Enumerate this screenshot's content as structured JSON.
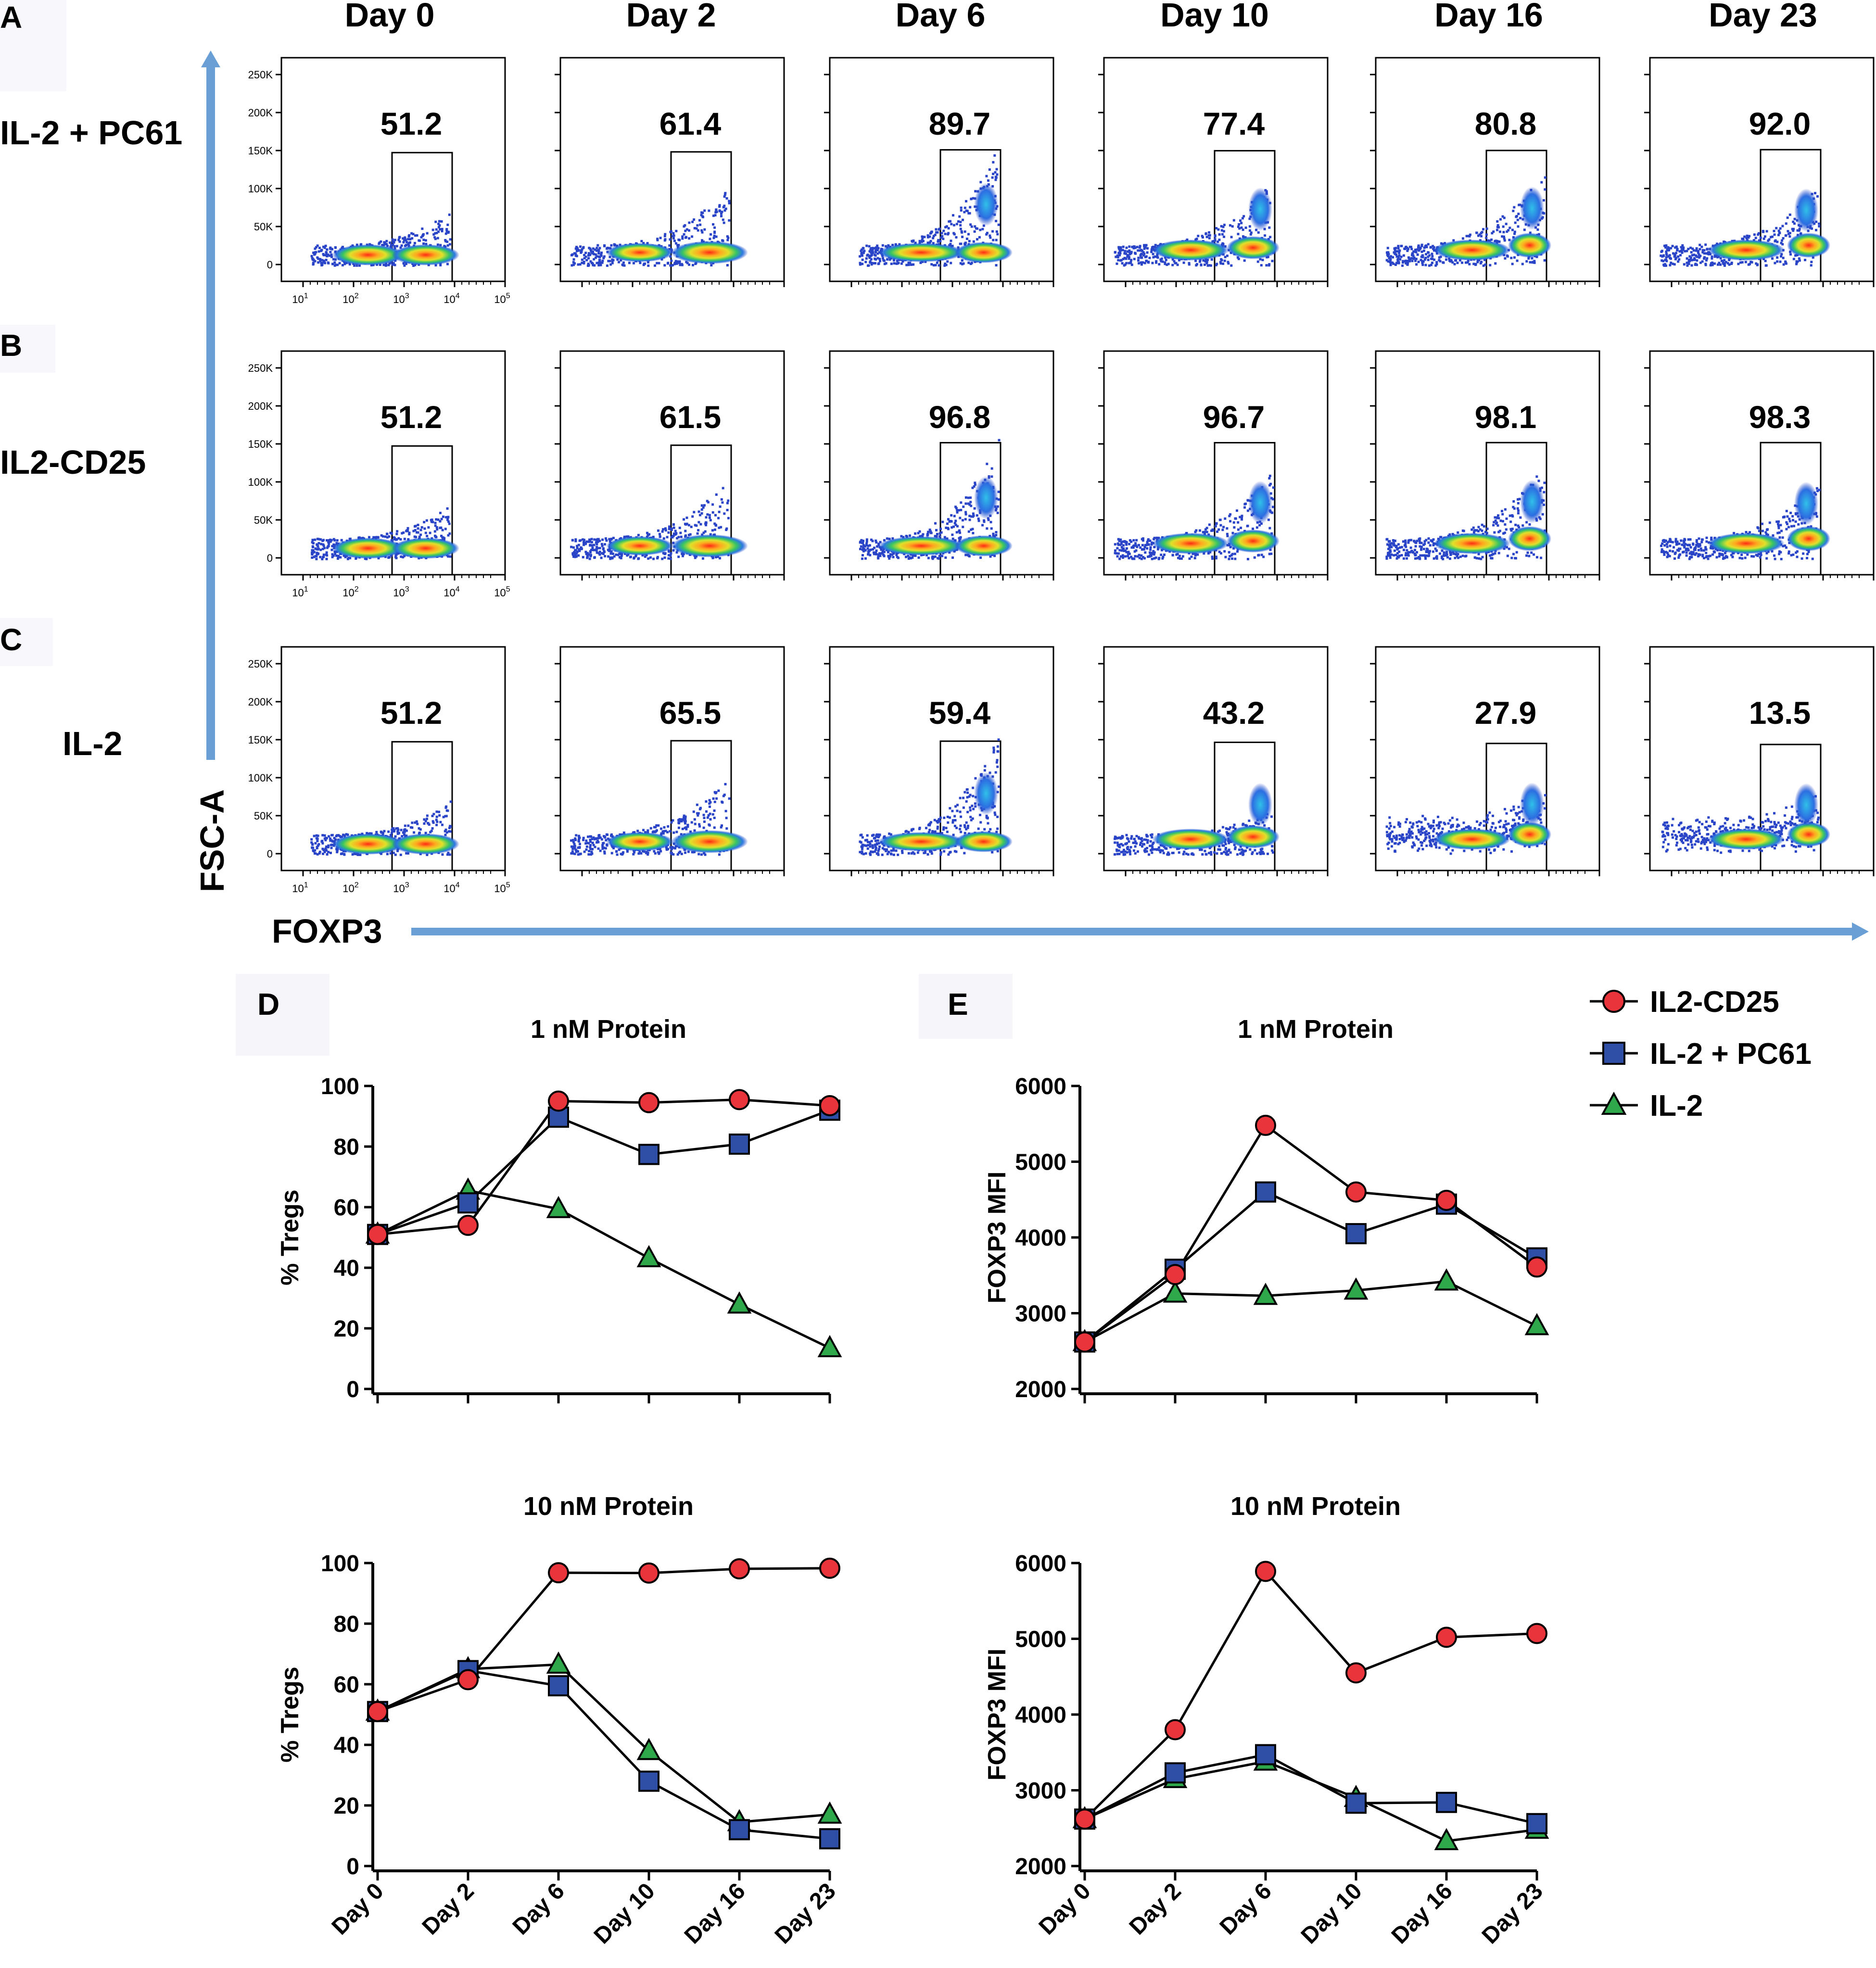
{
  "flow": {
    "panel_letters": [
      "A",
      "B",
      "C"
    ],
    "days": [
      "Day 0",
      "Day 2",
      "Day 6",
      "Day 10",
      "Day 16",
      "Day 23"
    ],
    "y_ticks": [
      "250K",
      "200K",
      "150K",
      "100K",
      "50K",
      "0"
    ],
    "x_tick_mantissa": "10",
    "x_tick_exponents": [
      "1",
      "2",
      "3",
      "4",
      "5"
    ],
    "y_axis_label": "FSC-A",
    "x_axis_label": "FOXP3",
    "rows": [
      {
        "label": "IL-2 + PC61",
        "gate_pct": [
          "51.2",
          "61.4",
          "89.7",
          "77.4",
          "80.8",
          "92.0"
        ]
      },
      {
        "label": "IL2-CD25",
        "gate_pct": [
          "51.2",
          "61.5",
          "96.8",
          "96.7",
          "98.1",
          "98.3"
        ]
      },
      {
        "label": "IL-2",
        "gate_pct": [
          "51.2",
          "65.5",
          "59.4",
          "43.2",
          "27.9",
          "13.5"
        ]
      }
    ]
  },
  "legend": [
    {
      "name": "IL2-CD25",
      "marker": "circle",
      "color": "#e8343a"
    },
    {
      "name": "IL-2 + PC61",
      "marker": "square",
      "color": "#2f4fa6"
    },
    {
      "name": "IL-2",
      "marker": "triangle",
      "color": "#2ea84a"
    }
  ],
  "chart_data": [
    {
      "panel": "D",
      "type": "line",
      "title": "1 nM Protein",
      "xlabel": "",
      "ylabel": "%  Tregs",
      "categories": [
        "Day 0",
        "Day 2",
        "Day 6",
        "Day 10",
        "Day 16",
        "Day 23"
      ],
      "ylim": [
        0,
        100
      ],
      "yticks": [
        0,
        20,
        40,
        60,
        80,
        100
      ],
      "show_x_labels": false,
      "series": [
        {
          "name": "IL-2",
          "marker": "triangle",
          "values": [
            51,
            65.5,
            59.4,
            43.2,
            27.9,
            13.5
          ]
        },
        {
          "name": "IL-2 + PC61",
          "marker": "square",
          "values": [
            51,
            61.4,
            89.7,
            77.4,
            80.8,
            92
          ]
        },
        {
          "name": "IL2-CD25",
          "marker": "circle",
          "values": [
            51,
            54,
            95,
            94.5,
            95.5,
            93.5
          ]
        }
      ]
    },
    {
      "panel": "E",
      "type": "line",
      "title": "1 nM Protein",
      "xlabel": "",
      "ylabel": "FOXP3 MFI",
      "categories": [
        "Day 0",
        "Day 2",
        "Day 6",
        "Day 10",
        "Day 16",
        "Day 23"
      ],
      "ylim": [
        2000,
        6000
      ],
      "yticks": [
        2000,
        3000,
        4000,
        5000,
        6000
      ],
      "show_x_labels": false,
      "series": [
        {
          "name": "IL-2",
          "marker": "triangle",
          "values": [
            2620,
            3260,
            3230,
            3300,
            3420,
            2830
          ]
        },
        {
          "name": "IL-2 + PC61",
          "marker": "square",
          "values": [
            2620,
            3580,
            4600,
            4050,
            4440,
            3730
          ]
        },
        {
          "name": "IL2-CD25",
          "marker": "circle",
          "values": [
            2620,
            3510,
            5480,
            4600,
            4490,
            3610
          ]
        }
      ]
    },
    {
      "panel": "",
      "type": "line",
      "title": "10 nM Protein",
      "xlabel": "",
      "ylabel": "%  Tregs",
      "categories": [
        "Day 0",
        "Day 2",
        "Day 6",
        "Day 10",
        "Day 16",
        "Day 23"
      ],
      "ylim": [
        0,
        100
      ],
      "yticks": [
        0,
        20,
        40,
        60,
        80,
        100
      ],
      "show_x_labels": true,
      "series": [
        {
          "name": "IL-2",
          "marker": "triangle",
          "values": [
            51,
            65,
            66.5,
            38,
            14.5,
            17
          ]
        },
        {
          "name": "IL-2 + PC61",
          "marker": "square",
          "values": [
            51,
            64.5,
            59.5,
            28,
            12,
            9
          ]
        },
        {
          "name": "IL2-CD25",
          "marker": "circle",
          "values": [
            51,
            61.5,
            96.8,
            96.7,
            98.1,
            98.3
          ]
        }
      ]
    },
    {
      "panel": "",
      "type": "line",
      "title": "10 nM Protein",
      "xlabel": "",
      "ylabel": "FOXP3 MFI",
      "categories": [
        "Day 0",
        "Day 2",
        "Day 6",
        "Day 10",
        "Day 16",
        "Day 23"
      ],
      "ylim": [
        2000,
        6000
      ],
      "yticks": [
        2000,
        3000,
        4000,
        5000,
        6000
      ],
      "show_x_labels": true,
      "series": [
        {
          "name": "IL-2",
          "marker": "triangle",
          "values": [
            2620,
            3150,
            3380,
            2900,
            2330,
            2480
          ]
        },
        {
          "name": "IL-2 + PC61",
          "marker": "square",
          "values": [
            2620,
            3230,
            3470,
            2830,
            2840,
            2560
          ]
        },
        {
          "name": "IL2-CD25",
          "marker": "circle",
          "values": [
            2620,
            3800,
            5890,
            4550,
            5020,
            5070
          ]
        }
      ]
    }
  ]
}
